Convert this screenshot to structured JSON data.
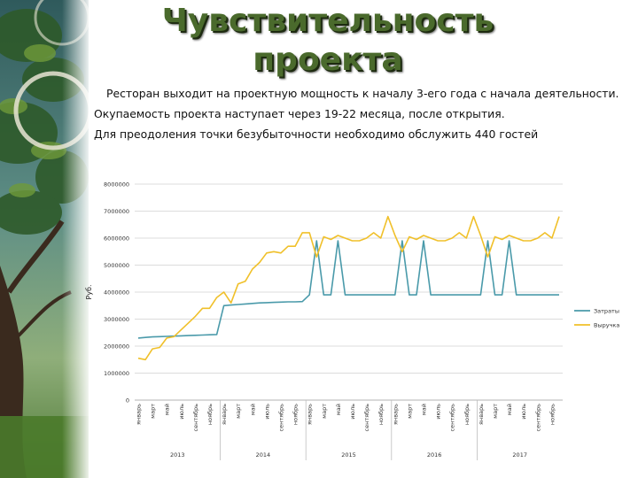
{
  "slide": {
    "title": "Чувствительность проекта",
    "paragraphs": [
      "Ресторан выходит на проектную мощность к началу 3-его года с начала деятельности.",
      "Окупаемость проекта наступает через 19-22 месяца, после открытия.",
      "Для преодоления точки безубыточности необходимо обслужить 440 гостей"
    ]
  },
  "chart_data": {
    "type": "line",
    "ylabel": "Руб.",
    "ylim": [
      0,
      8000000
    ],
    "yticks": [
      "0",
      "1000000",
      "2000000",
      "3000000",
      "4000000",
      "5000000",
      "6000000",
      "7000000",
      "8000000"
    ],
    "years": [
      "2013",
      "2014",
      "2015",
      "2016",
      "2017"
    ],
    "month_labels": [
      "январь",
      "март",
      "май",
      "июль",
      "сентябрь",
      "ноябрь"
    ],
    "legend_position": "right",
    "grid": true,
    "series": [
      {
        "name": "Затраты",
        "color": "#4a9aaa",
        "values": [
          2300000,
          2320000,
          2340000,
          2350000,
          2360000,
          2370000,
          2380000,
          2390000,
          2400000,
          2410000,
          2420000,
          2430000,
          3500000,
          3520000,
          3540000,
          3560000,
          3580000,
          3600000,
          3610000,
          3620000,
          3630000,
          3640000,
          3640000,
          3650000,
          3900000,
          5900000,
          3900000,
          3900000,
          5900000,
          3900000,
          3900000,
          3900000,
          3900000,
          3900000,
          3900000,
          3900000,
          3900000,
          5900000,
          3900000,
          3900000,
          5900000,
          3900000,
          3900000,
          3900000,
          3900000,
          3900000,
          3900000,
          3900000,
          3900000,
          5900000,
          3900000,
          3900000,
          5900000,
          3900000,
          3900000,
          3900000,
          3900000,
          3900000,
          3900000,
          3900000
        ]
      },
      {
        "name": "Выручка",
        "color": "#f0c02a",
        "values": [
          1550000,
          1500000,
          1900000,
          1950000,
          2300000,
          2350000,
          2600000,
          2850000,
          3100000,
          3400000,
          3400000,
          3800000,
          4000000,
          3600000,
          4300000,
          4400000,
          4850000,
          5100000,
          5450000,
          5500000,
          5450000,
          5700000,
          5700000,
          6200000,
          6200000,
          5300000,
          6050000,
          5950000,
          6100000,
          6000000,
          5900000,
          5900000,
          6000000,
          6200000,
          6000000,
          6800000,
          6100000,
          5500000,
          6050000,
          5950000,
          6100000,
          6000000,
          5900000,
          5900000,
          6000000,
          6200000,
          6000000,
          6800000,
          6100000,
          5300000,
          6050000,
          5950000,
          6100000,
          6000000,
          5900000,
          5900000,
          6000000,
          6200000,
          6000000,
          6800000
        ]
      }
    ]
  }
}
